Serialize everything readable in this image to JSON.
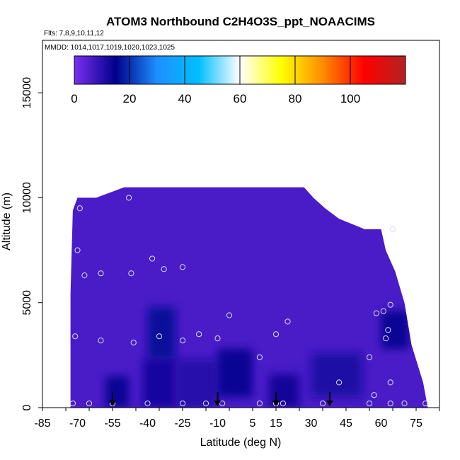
{
  "chart_data": {
    "type": "heatmap",
    "title": "ATOM3 Northbound C2H4O3S_ppt_NOAACIMS",
    "flights_text": "Flts: 7,8,9,10,11,12",
    "dates_text": "MMDD: 1014,1017,1019,1020,1023,1025",
    "xlabel": "Latitude (deg N)",
    "ylabel": "Altitude (m)",
    "xlim": [
      -85,
      85
    ],
    "ylim": [
      0,
      17500
    ],
    "x_ticks": [
      -85,
      -70,
      -55,
      -40,
      -25,
      -10,
      5,
      15,
      30,
      45,
      60,
      75
    ],
    "x_tick_labels": [
      "-85",
      "-70",
      "-55",
      "-40",
      "-25",
      "-10",
      "5",
      "15",
      "30",
      "45",
      "60",
      "75"
    ],
    "y_ticks": [
      0,
      5000,
      10000,
      15000
    ],
    "y_tick_labels": [
      "0",
      "5000",
      "10000",
      "15000"
    ],
    "colorbar": {
      "range": [
        0,
        120
      ],
      "ticks": [
        0,
        20,
        40,
        60,
        80,
        100
      ],
      "tick_labels": [
        "0",
        "20",
        "40",
        "60",
        "80",
        "100"
      ],
      "colors": [
        "#7a2ff0",
        "#00008b",
        "#1e8fff",
        "#00bfff",
        "#ffffff",
        "#ffff00",
        "#ff8c00",
        "#ff0000",
        "#b22222"
      ]
    },
    "background_value": 6,
    "envelope": [
      [
        -73,
        0
      ],
      [
        -73,
        5400
      ],
      [
        -72,
        9400
      ],
      [
        -70,
        10000
      ],
      [
        -63,
        10000
      ],
      [
        -62,
        10000
      ],
      [
        -50,
        10500
      ],
      [
        -20,
        10500
      ],
      [
        10,
        10500
      ],
      [
        18,
        10500
      ],
      [
        27,
        10500
      ],
      [
        31,
        10000
      ],
      [
        36,
        9500
      ],
      [
        42,
        9000
      ],
      [
        53,
        8500
      ],
      [
        60,
        8500
      ],
      [
        62,
        7500
      ],
      [
        66,
        6500
      ],
      [
        70,
        5000
      ],
      [
        73,
        3000
      ],
      [
        78,
        1200
      ],
      [
        80,
        0
      ]
    ],
    "low_regions": [
      {
        "lat": [
          -58,
          -48
        ],
        "alt": [
          0,
          1500
        ],
        "value": 15
      },
      {
        "lat": [
          -42,
          -28
        ],
        "alt": [
          0,
          2300
        ],
        "value": 13
      },
      {
        "lat": [
          -28,
          -10
        ],
        "alt": [
          0,
          2300
        ],
        "value": 11
      },
      {
        "lat": [
          -40,
          -28
        ],
        "alt": [
          2300,
          4800
        ],
        "value": 16
      },
      {
        "lat": [
          -10,
          5
        ],
        "alt": [
          500,
          2800
        ],
        "value": 15
      },
      {
        "lat": [
          12,
          25
        ],
        "alt": [
          0,
          1600
        ],
        "value": 14
      },
      {
        "lat": [
          30,
          52
        ],
        "alt": [
          500,
          2600
        ],
        "value": 12
      },
      {
        "lat": [
          60,
          72
        ],
        "alt": [
          2800,
          4600
        ],
        "value": 15
      }
    ],
    "observations": [
      [
        -72,
        200
      ],
      [
        -71,
        3400
      ],
      [
        -70,
        7500
      ],
      [
        -69,
        9500
      ],
      [
        -67,
        6300
      ],
      [
        -65,
        200
      ],
      [
        -60,
        6400
      ],
      [
        -60,
        3200
      ],
      [
        -55,
        200
      ],
      [
        -48,
        10000
      ],
      [
        -47,
        6400
      ],
      [
        -46,
        3100
      ],
      [
        -40,
        200
      ],
      [
        -38,
        7100
      ],
      [
        -35,
        3400
      ],
      [
        -33,
        6600
      ],
      [
        -25,
        6700
      ],
      [
        -25,
        3200
      ],
      [
        -25,
        200
      ],
      [
        -18,
        3500
      ],
      [
        -15,
        200
      ],
      [
        -10,
        3300
      ],
      [
        -8,
        200
      ],
      [
        -5,
        4400
      ],
      [
        8,
        2400
      ],
      [
        8,
        200
      ],
      [
        15,
        3500
      ],
      [
        15,
        200
      ],
      [
        18,
        200
      ],
      [
        20,
        4100
      ],
      [
        35,
        200
      ],
      [
        42,
        1200
      ],
      [
        55,
        2400
      ],
      [
        55,
        200
      ],
      [
        57,
        600
      ],
      [
        58,
        4500
      ],
      [
        61,
        4600
      ],
      [
        62,
        3300
      ],
      [
        63,
        3700
      ],
      [
        64,
        1200
      ],
      [
        64,
        4900
      ],
      [
        64,
        200
      ],
      [
        65,
        8500
      ],
      [
        70,
        200
      ],
      [
        79,
        200
      ]
    ],
    "markers": [
      -55,
      -10,
      15,
      38
    ]
  }
}
